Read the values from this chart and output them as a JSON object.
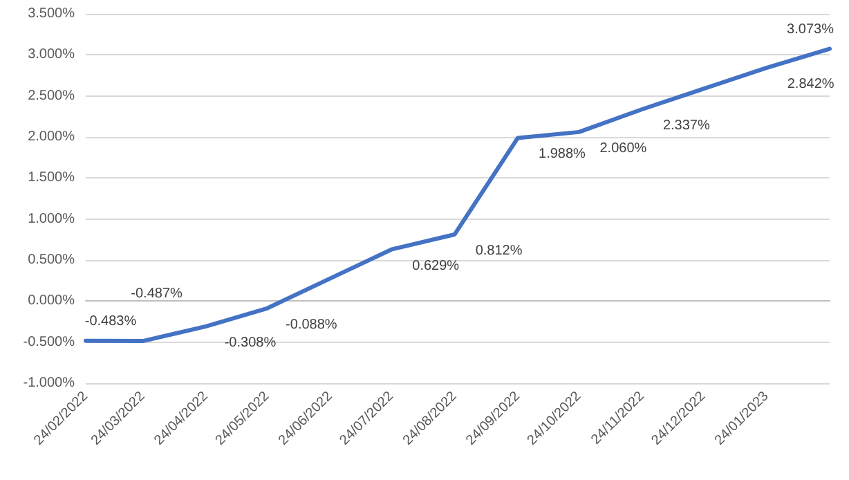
{
  "chart_data": {
    "type": "line",
    "x": [
      "2022-02-24",
      "2022-03-24",
      "2022-04-24",
      "2022-05-24",
      "2022-07-24",
      "2022-08-24",
      "2022-09-24",
      "2022-10-24",
      "2022-11-24",
      "2023-01-24",
      "2023-02-24"
    ],
    "series": [
      {
        "color": "#4472c4",
        "values": [
          -0.483,
          -0.487,
          -0.308,
          -0.088,
          0.629,
          0.812,
          1.988,
          2.06,
          2.337,
          2.842,
          3.073
        ],
        "value_labels": [
          "-0.483%",
          "-0.487%",
          "-0.308%",
          "-0.088%",
          "0.629%",
          "0.812%",
          "1.988%",
          "2.060%",
          "2.337%",
          "2.842%",
          "3.073%"
        ]
      }
    ],
    "xlim": [
      "2022-02-24",
      "2023-02-24"
    ],
    "xticks": [
      {
        "value": "2022-02-24",
        "label": "24/02/2022"
      },
      {
        "value": "2022-03-24",
        "label": "24/03/2022"
      },
      {
        "value": "2022-04-24",
        "label": "24/04/2022"
      },
      {
        "value": "2022-05-24",
        "label": "24/05/2022"
      },
      {
        "value": "2022-06-24",
        "label": "24/06/2022"
      },
      {
        "value": "2022-07-24",
        "label": "24/07/2022"
      },
      {
        "value": "2022-08-24",
        "label": "24/08/2022"
      },
      {
        "value": "2022-09-24",
        "label": "24/09/2022"
      },
      {
        "value": "2022-10-24",
        "label": "24/10/2022"
      },
      {
        "value": "2022-11-24",
        "label": "24/11/2022"
      },
      {
        "value": "2022-12-24",
        "label": "24/12/2022"
      },
      {
        "value": "2023-01-24",
        "label": "24/01/2023"
      }
    ],
    "ylim": [
      -1,
      3.5
    ],
    "yticks": [
      {
        "value": -1,
        "label": "-1.000%"
      },
      {
        "value": -0.5,
        "label": "-0.500%"
      },
      {
        "value": 0,
        "label": "0.000%"
      },
      {
        "value": 0.5,
        "label": "0.500%"
      },
      {
        "value": 1,
        "label": "1.000%"
      },
      {
        "value": 1.5,
        "label": "1.500%"
      },
      {
        "value": 2,
        "label": "2.000%"
      },
      {
        "value": 2.5,
        "label": "2.500%"
      },
      {
        "value": 3,
        "label": "3.000%"
      },
      {
        "value": 3.5,
        "label": "3.500%"
      }
    ],
    "grid": "y",
    "marker": "none",
    "line_style": "solid"
  }
}
